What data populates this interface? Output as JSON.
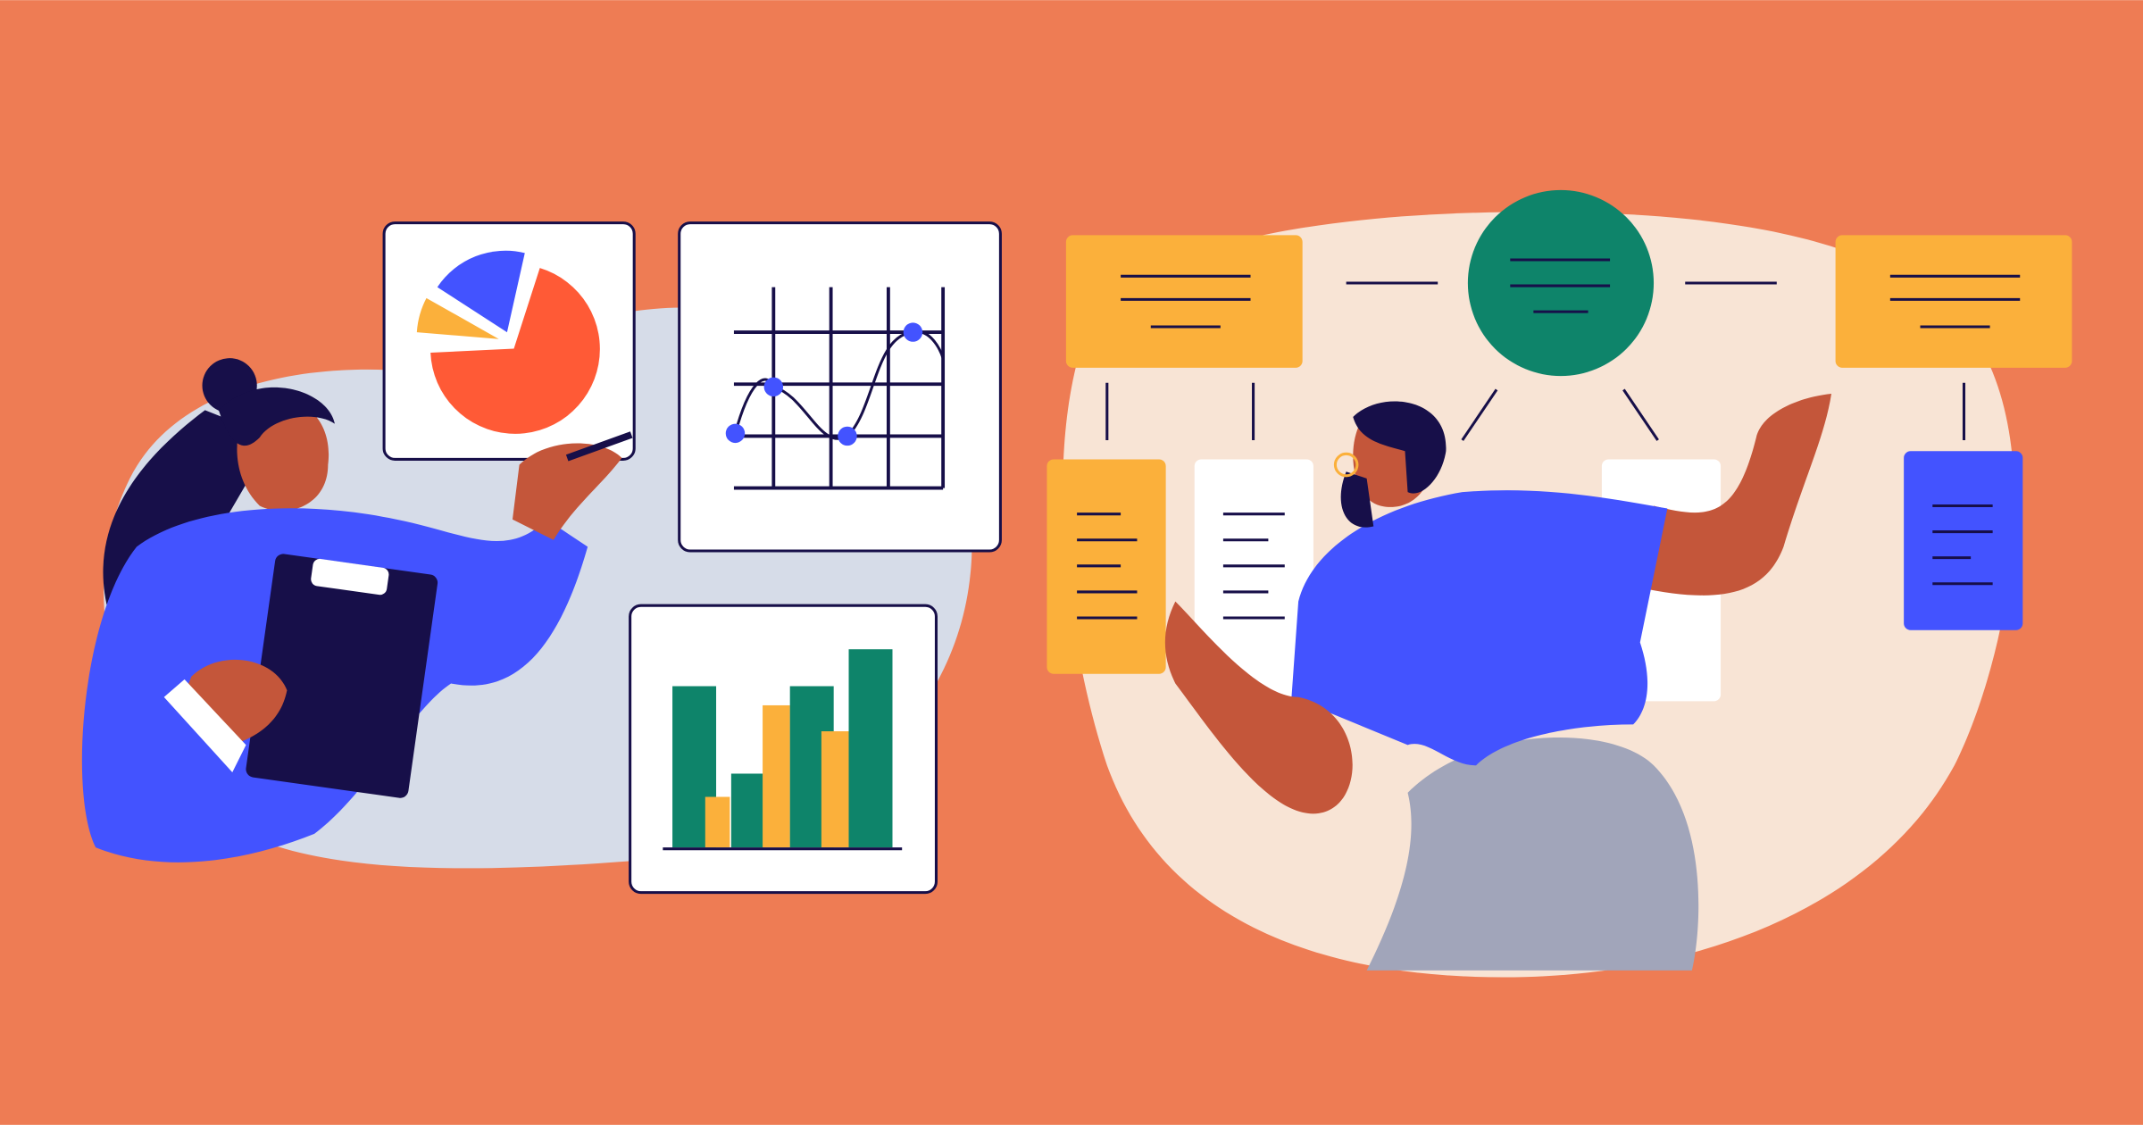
{
  "colors": {
    "background": "#EE7C54",
    "left_blob": "#D6DCE8",
    "right_blob": "#F8E4D5",
    "yellow": "#FBB03B",
    "green": "#0E846A",
    "blue": "#4353FF",
    "navy": "#170F49",
    "skin": "#C4563A",
    "pie_red": "#FF5A36",
    "pants": "#A1A5BA",
    "white": "#FFFFFF"
  },
  "icons": [
    "pie-chart-card",
    "line-chart-card",
    "bar-chart-card",
    "org-chart-diagram",
    "clipboard"
  ]
}
